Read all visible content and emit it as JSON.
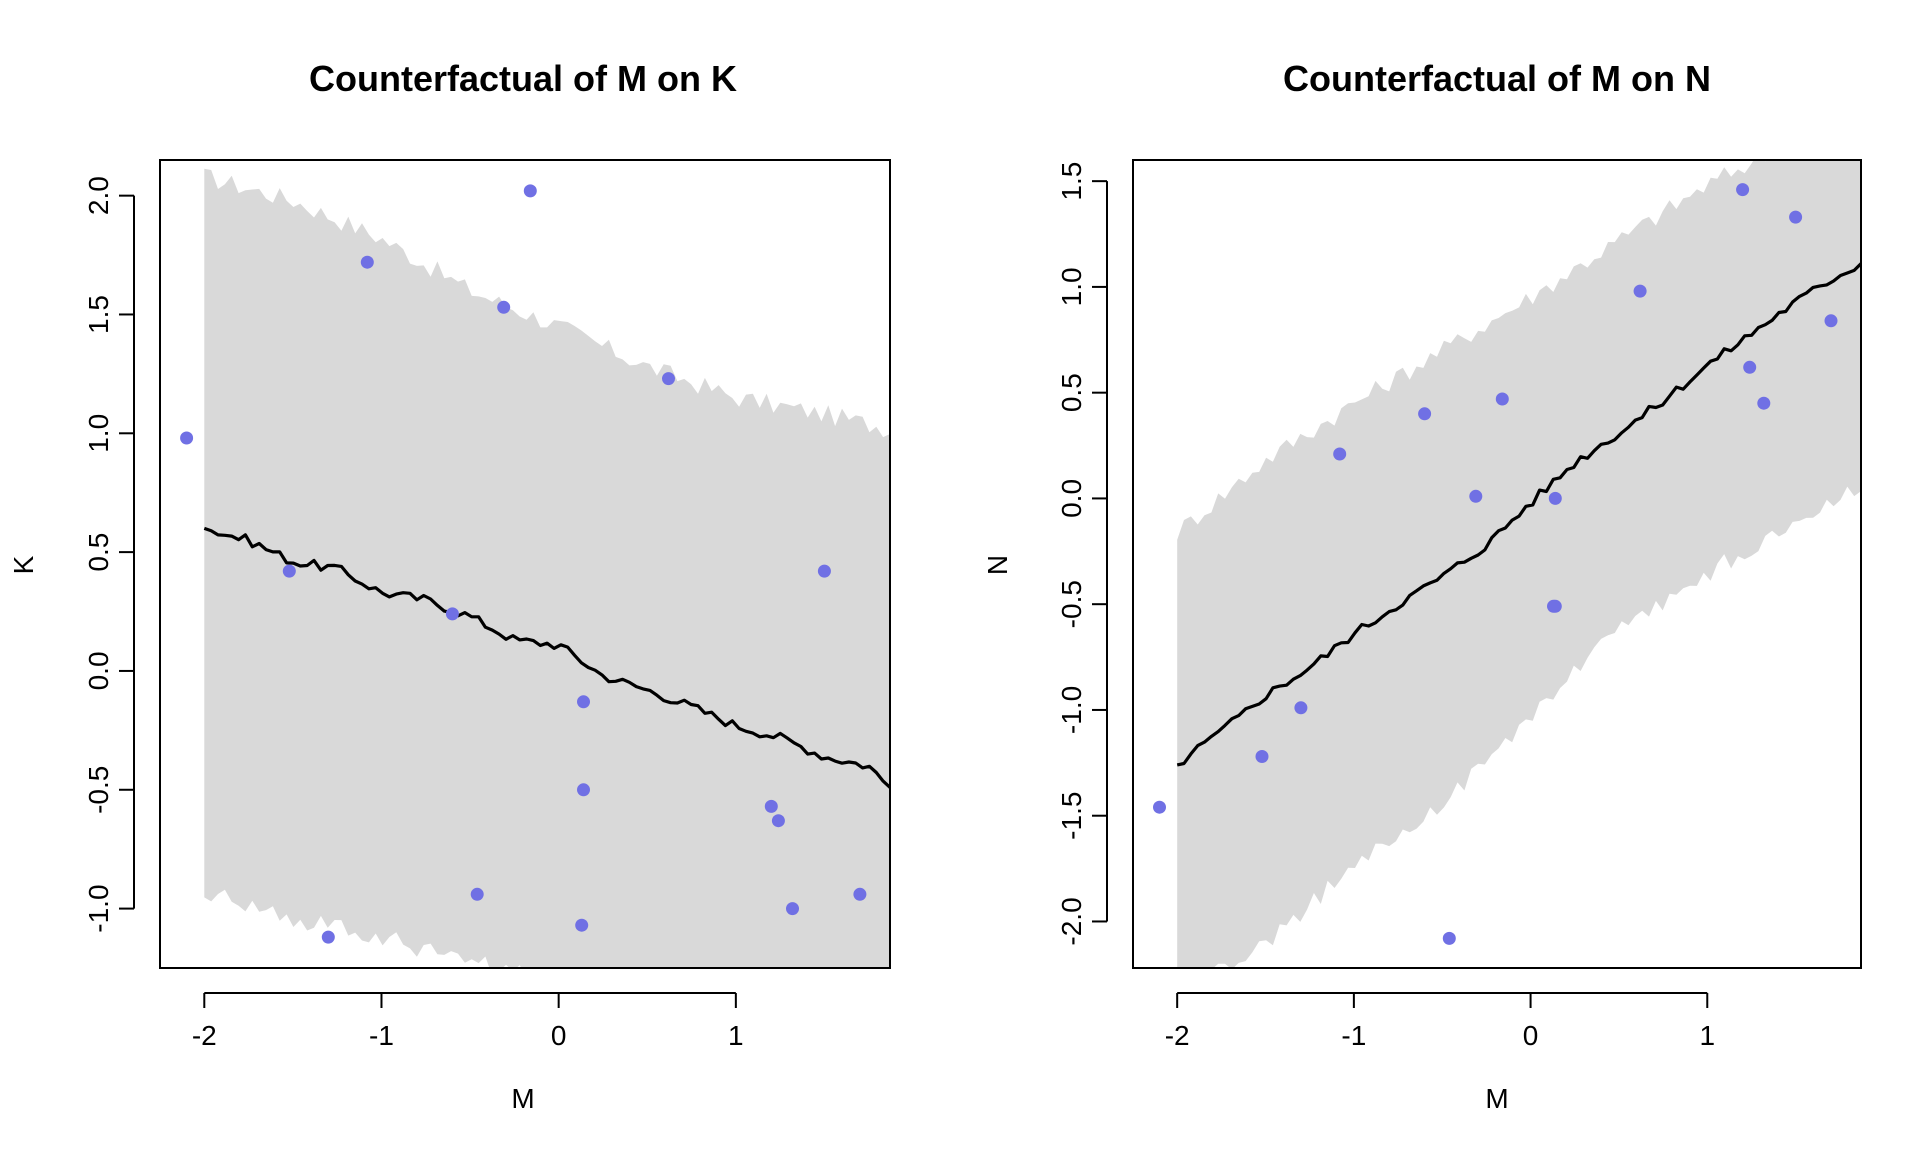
{
  "chart_data": [
    {
      "type": "line",
      "title": "Counterfactual of M on K",
      "xlabel": "M",
      "ylabel": "K",
      "xlim": [
        -2.25,
        1.87
      ],
      "ylim": [
        -1.25,
        2.15
      ],
      "xticks": [
        -2,
        -1,
        0,
        1
      ],
      "xtick_labels": [
        "-2",
        "-1",
        "0",
        "1"
      ],
      "yticks": [
        -1.0,
        -0.5,
        0.0,
        0.5,
        1.0,
        1.5,
        2.0
      ],
      "ytick_labels": [
        "-1.0",
        "-0.5",
        "0.0",
        "0.5",
        "1.0",
        "1.5",
        "2.0"
      ],
      "interval_band": {
        "x": [
          -2.0,
          -1.5,
          -1.0,
          -0.5,
          0.0,
          0.5,
          1.0,
          1.5,
          1.87
        ],
        "upper": [
          2.08,
          1.98,
          1.82,
          1.6,
          1.45,
          1.28,
          1.15,
          1.08,
          1.02
        ],
        "lower": [
          -0.92,
          -1.05,
          -1.12,
          -1.22,
          -1.32,
          -1.4,
          -1.48,
          -1.52,
          -1.56
        ]
      },
      "series": [
        {
          "kind": "mean_line",
          "x": [
            -2.0,
            -1.75,
            -1.5,
            -1.25,
            -1.0,
            -0.75,
            -0.5,
            -0.25,
            0.0,
            0.25,
            0.5,
            0.75,
            1.0,
            1.25,
            1.5,
            1.75,
            1.87
          ],
          "y": [
            0.6,
            0.55,
            0.46,
            0.43,
            0.33,
            0.3,
            0.23,
            0.13,
            0.11,
            -0.02,
            -0.08,
            -0.15,
            -0.23,
            -0.28,
            -0.36,
            -0.4,
            -0.49
          ]
        },
        {
          "kind": "observed_points",
          "x": [
            -2.1,
            -1.52,
            -1.3,
            -1.08,
            -0.6,
            -0.46,
            -0.31,
            -0.16,
            0.13,
            0.14,
            0.14,
            0.62,
            1.2,
            1.24,
            1.32,
            1.5,
            1.7
          ],
          "y": [
            0.98,
            0.42,
            -1.12,
            1.72,
            0.24,
            -0.94,
            1.53,
            2.02,
            -1.07,
            -0.13,
            -0.5,
            1.23,
            -0.57,
            -0.63,
            -1.0,
            0.42,
            -0.94
          ]
        }
      ]
    },
    {
      "type": "line",
      "title": "Counterfactual of M on N",
      "xlabel": "M",
      "ylabel": "N",
      "xlim": [
        -2.25,
        1.87
      ],
      "ylim": [
        -2.22,
        1.6
      ],
      "xticks": [
        -2,
        -1,
        0,
        1
      ],
      "xtick_labels": [
        "-2",
        "-1",
        "0",
        "1"
      ],
      "yticks": [
        -2.0,
        -1.5,
        -1.0,
        -0.5,
        0.0,
        0.5,
        1.0,
        1.5
      ],
      "ytick_labels": [
        "-2.0",
        "-1.5",
        "-1.0",
        "-0.5",
        "0.0",
        "0.5",
        "1.0",
        "1.5"
      ],
      "interval_band": {
        "x": [
          -2.0,
          -1.5,
          -1.0,
          -0.5,
          0.0,
          0.5,
          1.0,
          1.5,
          1.87
        ],
        "upper": [
          -0.16,
          0.18,
          0.45,
          0.7,
          0.95,
          1.22,
          1.48,
          1.7,
          1.8
        ],
        "lower": [
          -2.35,
          -2.1,
          -1.75,
          -1.45,
          -1.02,
          -0.62,
          -0.35,
          -0.12,
          0.05
        ]
      },
      "series": [
        {
          "kind": "mean_line",
          "x": [
            -2.0,
            -1.75,
            -1.5,
            -1.25,
            -1.0,
            -0.75,
            -0.5,
            -0.25,
            0.0,
            0.25,
            0.5,
            0.75,
            1.0,
            1.25,
            1.5,
            1.75,
            1.87
          ],
          "y": [
            -1.26,
            -1.1,
            -0.93,
            -0.8,
            -0.64,
            -0.5,
            -0.37,
            -0.22,
            -0.02,
            0.17,
            0.31,
            0.46,
            0.63,
            0.78,
            0.93,
            1.06,
            1.11
          ]
        },
        {
          "kind": "observed_points",
          "x": [
            -2.1,
            -1.52,
            -1.3,
            -1.08,
            -0.6,
            -0.46,
            -0.31,
            -0.16,
            0.13,
            0.14,
            0.14,
            0.62,
            1.2,
            1.24,
            1.32,
            1.5,
            1.7
          ],
          "y": [
            -1.46,
            -1.22,
            -0.99,
            0.21,
            0.4,
            -2.08,
            0.01,
            0.47,
            -0.51,
            -0.51,
            0.0,
            0.98,
            1.46,
            0.62,
            0.45,
            1.33,
            0.84
          ]
        }
      ]
    }
  ],
  "colors": {
    "band": "#d9d9d9",
    "line": "#000000",
    "points": "#7070e4",
    "frame": "#000000"
  }
}
